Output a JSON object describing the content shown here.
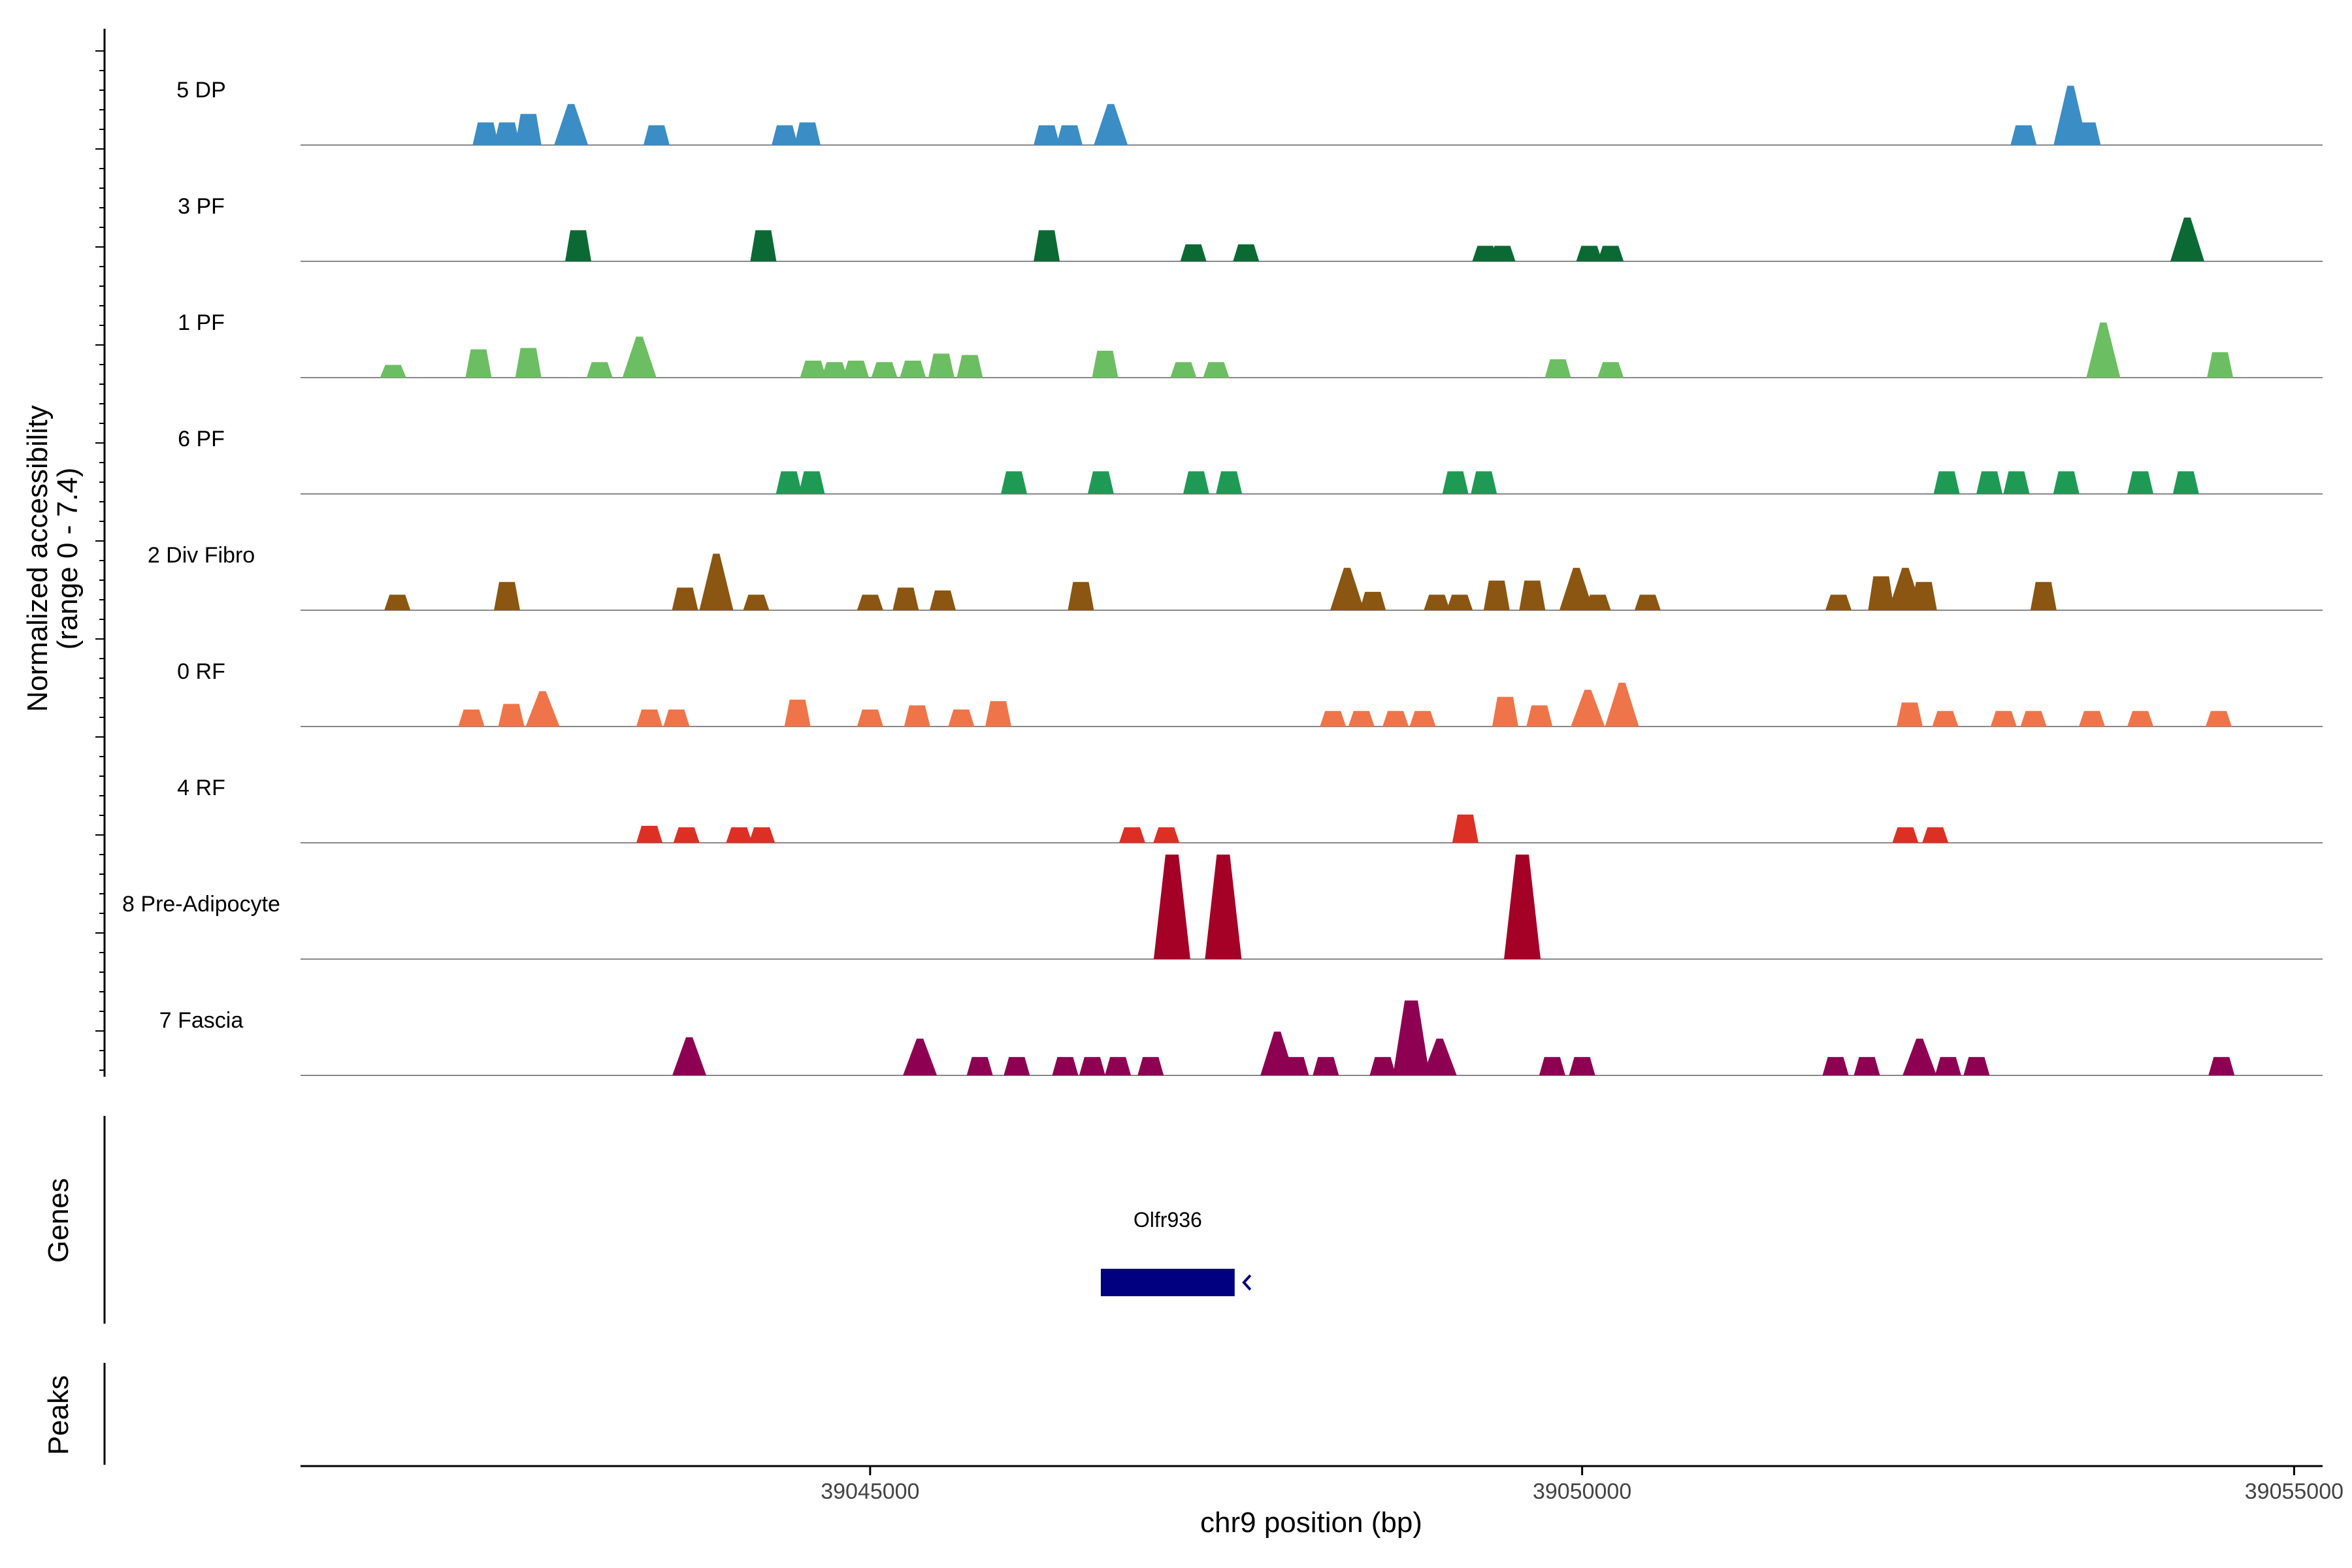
{
  "chart_data": {
    "type": "area",
    "title": "",
    "ylabel_line1": "Normalized accessibility",
    "ylabel_line2": "(range 0 - 7.4)",
    "xlabel": "chr9 position (bp)",
    "xlim": [
      39041000,
      39055200
    ],
    "ylim": [
      0,
      7.4
    ],
    "x_ticks": [
      39045000,
      39050000,
      39055000
    ],
    "x_tick_labels": [
      "39045000",
      "39050000",
      "39055000"
    ],
    "series": [
      {
        "name": "5 DP",
        "color": "#3b8dc5",
        "peaks": [
          [
            39042300,
            1.6
          ],
          [
            39042450,
            1.6
          ],
          [
            39042600,
            2.2
          ],
          [
            39042900,
            2.9
          ],
          [
            39043500,
            1.4
          ],
          [
            39044400,
            1.4
          ],
          [
            39044560,
            1.6
          ],
          [
            39046240,
            1.4
          ],
          [
            39046400,
            1.4
          ],
          [
            39046690,
            2.9
          ],
          [
            39053100,
            1.4
          ],
          [
            39053430,
            4.2
          ],
          [
            39053550,
            1.6
          ]
        ]
      },
      {
        "name": "3 PF",
        "color": "#0b6a34",
        "peaks": [
          [
            39042950,
            2.2
          ],
          [
            39044250,
            2.2
          ],
          [
            39046240,
            2.2
          ],
          [
            39047270,
            1.2
          ],
          [
            39047640,
            1.2
          ],
          [
            39049320,
            1.1
          ],
          [
            39049440,
            1.1
          ],
          [
            39050050,
            1.1
          ],
          [
            39050200,
            1.1
          ],
          [
            39054250,
            3.1
          ]
        ]
      },
      {
        "name": "1 PF",
        "color": "#6cbe62",
        "peaks": [
          [
            39041650,
            0.9
          ],
          [
            39042250,
            2.0
          ],
          [
            39042600,
            2.1
          ],
          [
            39043100,
            1.1
          ],
          [
            39043380,
            2.9
          ],
          [
            39044600,
            1.2
          ],
          [
            39044750,
            1.1
          ],
          [
            39044900,
            1.2
          ],
          [
            39045100,
            1.1
          ],
          [
            39045300,
            1.2
          ],
          [
            39045500,
            1.7
          ],
          [
            39045700,
            1.6
          ],
          [
            39046650,
            1.9
          ],
          [
            39047200,
            1.1
          ],
          [
            39047430,
            1.1
          ],
          [
            39049830,
            1.3
          ],
          [
            39050200,
            1.1
          ],
          [
            39053660,
            3.9
          ],
          [
            39054480,
            1.8
          ]
        ]
      },
      {
        "name": "6 PF",
        "color": "#1e9a55",
        "peaks": [
          [
            39044430,
            1.6
          ],
          [
            39044590,
            1.6
          ],
          [
            39046010,
            1.6
          ],
          [
            39046620,
            1.6
          ],
          [
            39047290,
            1.6
          ],
          [
            39047520,
            1.6
          ],
          [
            39049110,
            1.6
          ],
          [
            39049310,
            1.6
          ],
          [
            39052560,
            1.6
          ],
          [
            39052860,
            1.6
          ],
          [
            39053050,
            1.6
          ],
          [
            39053400,
            1.6
          ],
          [
            39053920,
            1.6
          ],
          [
            39054240,
            1.6
          ]
        ]
      },
      {
        "name": "2 Div Fibro",
        "color": "#8b5612",
        "peaks": [
          [
            39041680,
            1.1
          ],
          [
            39042450,
            2.0
          ],
          [
            39043700,
            1.6
          ],
          [
            39043920,
            4.0
          ],
          [
            39044200,
            1.1
          ],
          [
            39045000,
            1.1
          ],
          [
            39045250,
            1.6
          ],
          [
            39045510,
            1.4
          ],
          [
            39046480,
            2.0
          ],
          [
            39048350,
            3.0
          ],
          [
            39048530,
            1.3
          ],
          [
            39048980,
            1.1
          ],
          [
            39049140,
            1.1
          ],
          [
            39049400,
            2.1
          ],
          [
            39049650,
            2.1
          ],
          [
            39049960,
            3.0
          ],
          [
            39050110,
            1.1
          ],
          [
            39050460,
            1.1
          ],
          [
            39051800,
            1.1
          ],
          [
            39052100,
            2.4
          ],
          [
            39052270,
            3.0
          ],
          [
            39052400,
            2.0
          ],
          [
            39053240,
            2.0
          ]
        ]
      },
      {
        "name": "0 RF",
        "color": "#f07449",
        "peaks": [
          [
            39042200,
            1.2
          ],
          [
            39042480,
            1.6
          ],
          [
            39042700,
            2.5
          ],
          [
            39043450,
            1.2
          ],
          [
            39043640,
            1.2
          ],
          [
            39044490,
            1.9
          ],
          [
            39045000,
            1.2
          ],
          [
            39045330,
            1.5
          ],
          [
            39045640,
            1.2
          ],
          [
            39045900,
            1.8
          ],
          [
            39048250,
            1.1
          ],
          [
            39048450,
            1.1
          ],
          [
            39048690,
            1.1
          ],
          [
            39048880,
            1.1
          ],
          [
            39049460,
            2.1
          ],
          [
            39049700,
            1.5
          ],
          [
            39050040,
            2.6
          ],
          [
            39050280,
            3.1
          ],
          [
            39052300,
            1.7
          ],
          [
            39052550,
            1.1
          ],
          [
            39052960,
            1.1
          ],
          [
            39053170,
            1.1
          ],
          [
            39053580,
            1.1
          ],
          [
            39053920,
            1.1
          ],
          [
            39054470,
            1.1
          ]
        ]
      },
      {
        "name": "4 RF",
        "color": "#dd3024",
        "peaks": [
          [
            39043450,
            1.2
          ],
          [
            39043710,
            1.1
          ],
          [
            39044080,
            1.1
          ],
          [
            39044240,
            1.1
          ],
          [
            39046840,
            1.1
          ],
          [
            39047080,
            1.1
          ],
          [
            39049180,
            2.0
          ],
          [
            39052270,
            1.1
          ],
          [
            39052480,
            1.1
          ]
        ]
      },
      {
        "name": "8 Pre-Adipocyte",
        "color": "#a50026",
        "peaks": [
          [
            39047120,
            7.4
          ],
          [
            39047480,
            7.4
          ],
          [
            39049580,
            7.4
          ]
        ]
      },
      {
        "name": "7 Fascia",
        "color": "#8e0152",
        "peaks": [
          [
            39043730,
            2.7
          ],
          [
            39045350,
            2.6
          ],
          [
            39045770,
            1.3
          ],
          [
            39046030,
            1.3
          ],
          [
            39046370,
            1.3
          ],
          [
            39046560,
            1.3
          ],
          [
            39046740,
            1.3
          ],
          [
            39046970,
            1.3
          ],
          [
            39047860,
            3.1
          ],
          [
            39047990,
            1.3
          ],
          [
            39048200,
            1.3
          ],
          [
            39048600,
            1.3
          ],
          [
            39048800,
            5.3
          ],
          [
            39049000,
            2.6
          ],
          [
            39049790,
            1.3
          ],
          [
            39050000,
            1.3
          ],
          [
            39051780,
            1.3
          ],
          [
            39052000,
            1.3
          ],
          [
            39052370,
            2.6
          ],
          [
            39052570,
            1.3
          ],
          [
            39052770,
            1.3
          ],
          [
            39054490,
            1.3
          ]
        ]
      }
    ],
    "genes_track": {
      "label": "Genes",
      "genes": [
        {
          "name": "Olfr936",
          "start": 39046620,
          "end": 39047560,
          "strand": "-",
          "color": "#000080"
        }
      ]
    },
    "peaks_track": {
      "label": "Peaks",
      "regions": []
    },
    "grid": false,
    "legend": "none"
  }
}
